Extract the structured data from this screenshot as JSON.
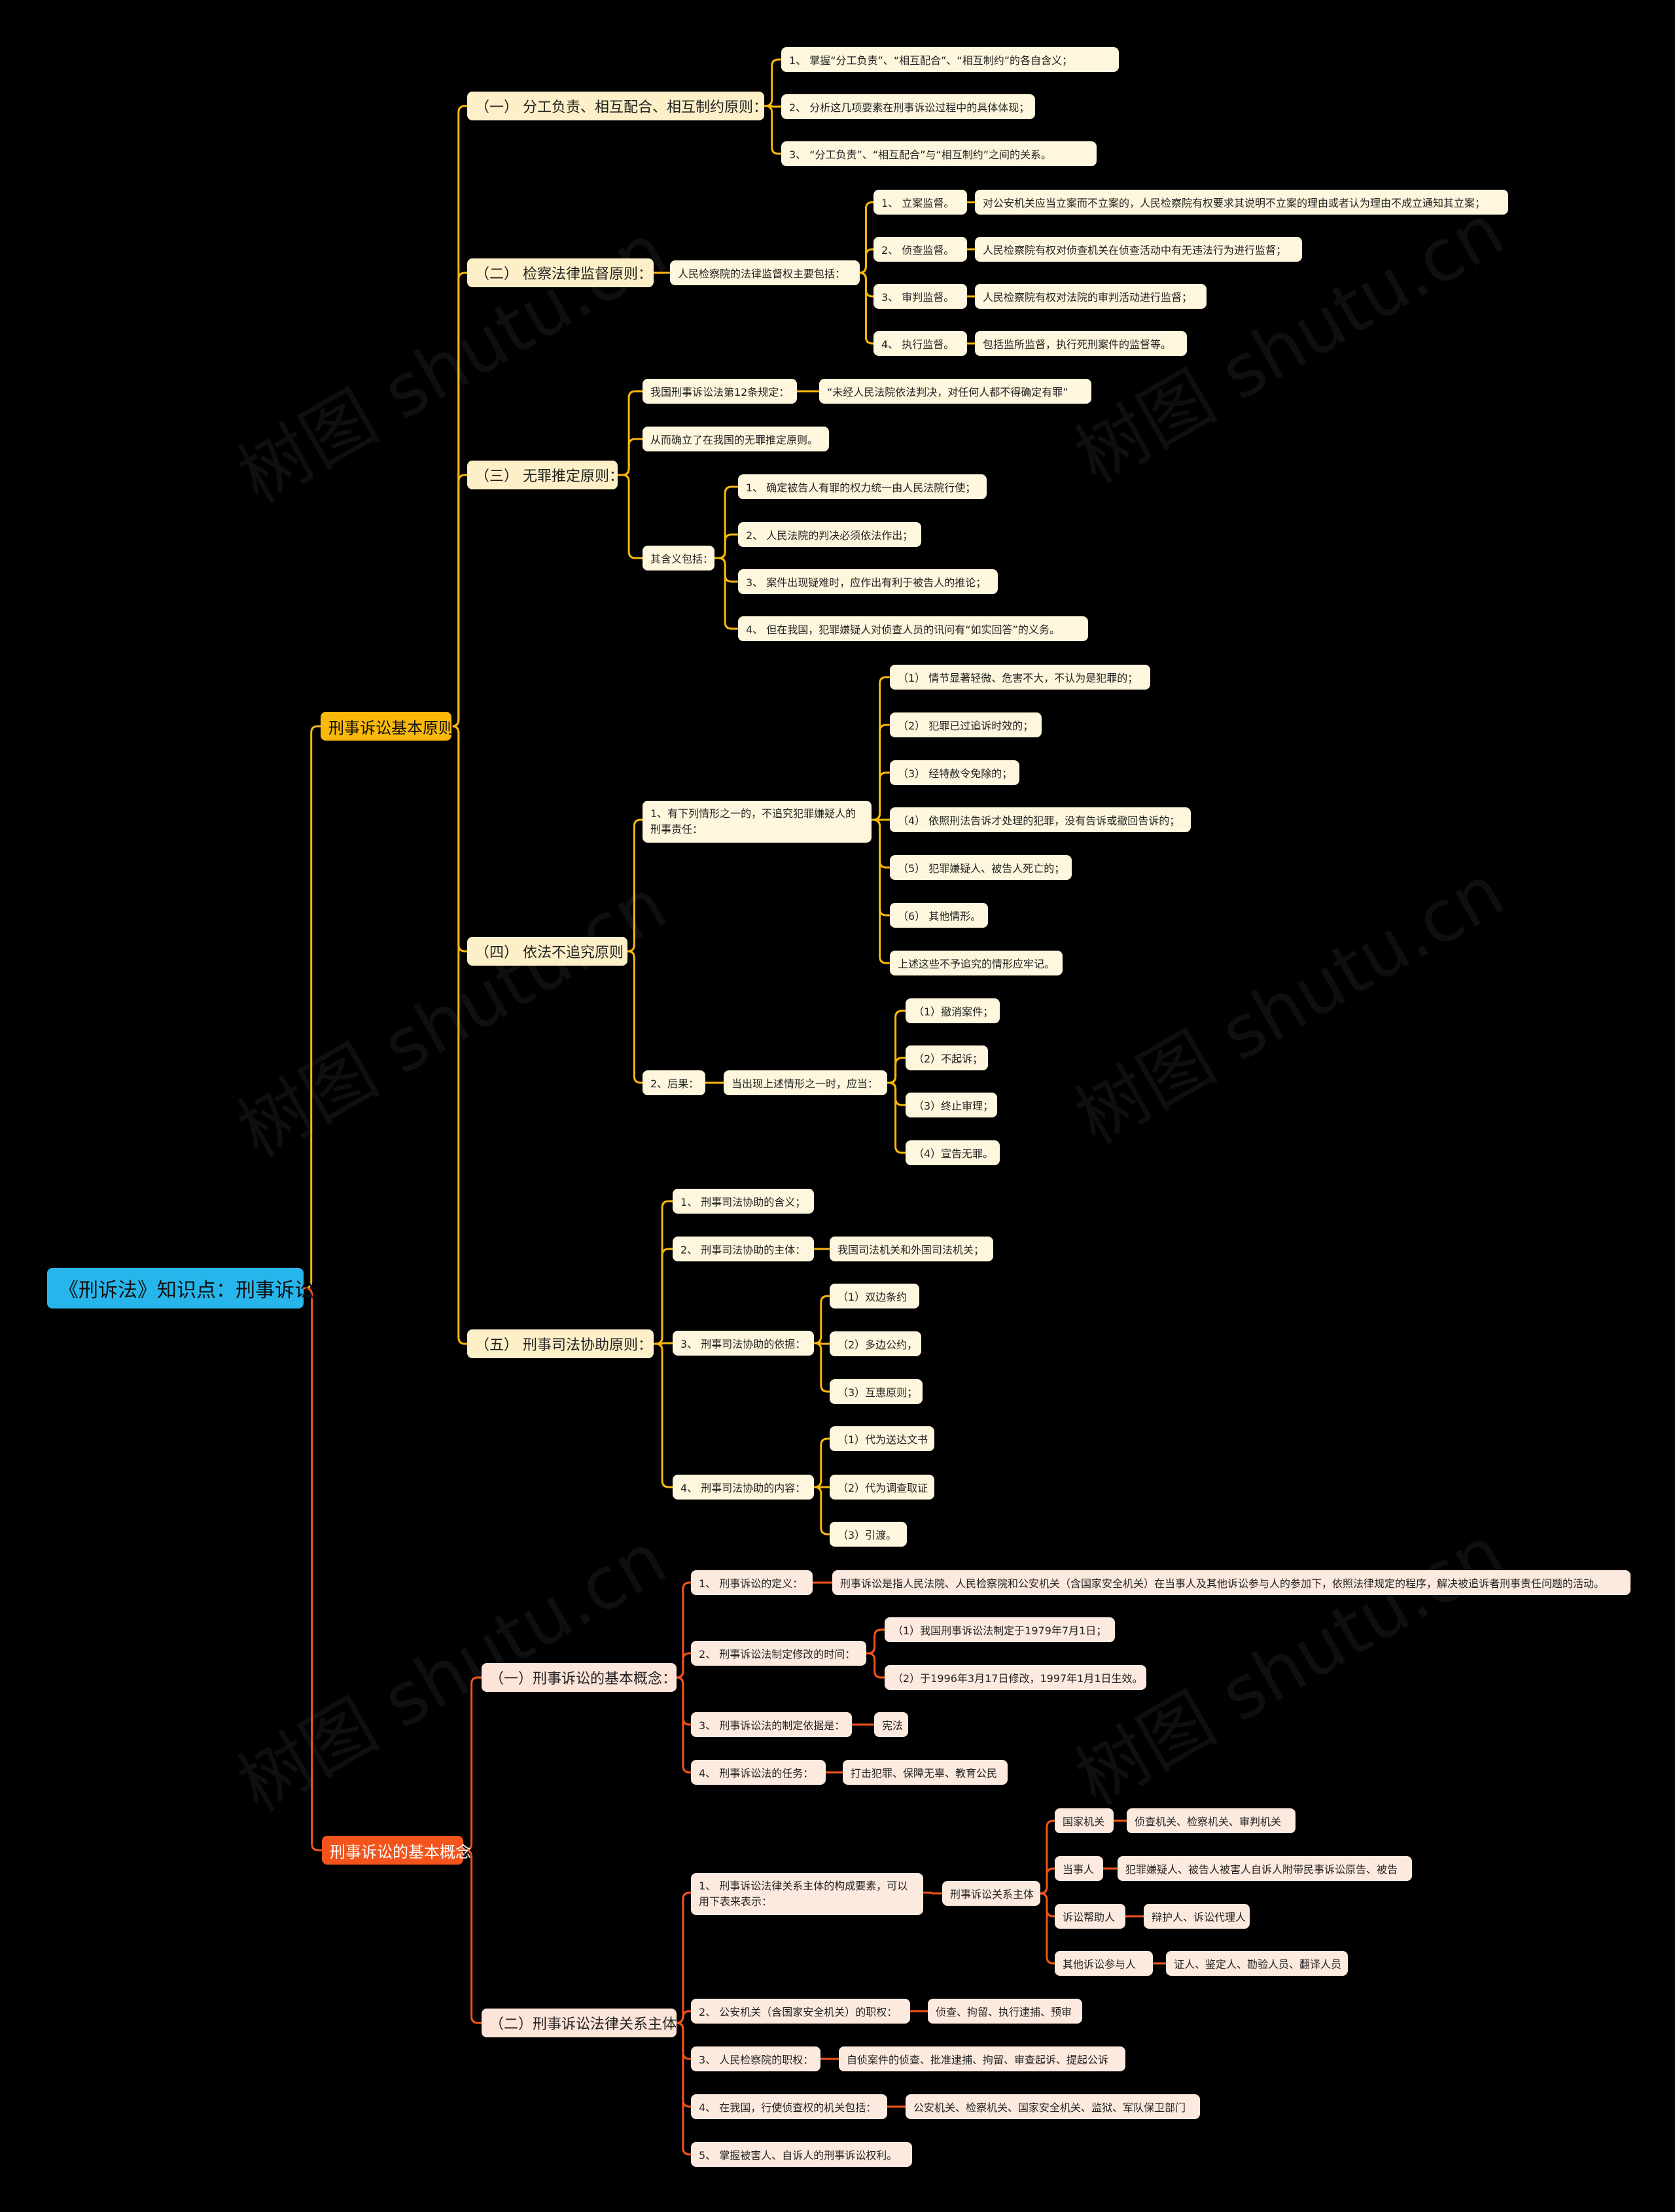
{
  "watermark": "树图 shutu.cn",
  "colors": {
    "main1": "#f9b80a",
    "main2": "#f4541b",
    "root": "#27b6ec"
  },
  "tree": {
    "id": "root",
    "text": "《刑诉法》知识点：刑事诉讼",
    "children": [
      {
        "id": "m1",
        "text": "刑事诉讼基本原则",
        "children": [
          {
            "id": "a1",
            "text": "（一）  分工负责、相互配合、相互制约原则：",
            "children": [
              {
                "id": "a1-1",
                "text": "1、 掌握“分工负责”、“相互配合”、“相互制约”的各自含义；"
              },
              {
                "id": "a1-2",
                "text": "2、 分析这几项要素在刑事诉讼过程中的具体体现；"
              },
              {
                "id": "a1-3",
                "text": "3、 “分工负责”、“相互配合”与“相互制约”之间的关系。"
              }
            ]
          },
          {
            "id": "a2",
            "text": "（二）  检察法律监督原则：",
            "children": [
              {
                "id": "a2-1",
                "text": "人民检察院的法律监督权主要包括：",
                "children": [
                  {
                    "id": "a2-1-1",
                    "text": "1、 立案监督。",
                    "children": [
                      {
                        "id": "a2-1-1-1",
                        "text": "对公安机关应当立案而不立案的，人民检察院有权要求其说明不立案的理由或者认为理由不成立通知其立案；"
                      }
                    ]
                  },
                  {
                    "id": "a2-1-2",
                    "text": "2、 侦查监督。",
                    "children": [
                      {
                        "id": "a2-1-2-1",
                        "text": "人民检察院有权对侦查机关在侦查活动中有无违法行为进行监督；"
                      }
                    ]
                  },
                  {
                    "id": "a2-1-3",
                    "text": "3、 审判监督。",
                    "children": [
                      {
                        "id": "a2-1-3-1",
                        "text": "人民检察院有权对法院的审判活动进行监督；"
                      }
                    ]
                  },
                  {
                    "id": "a2-1-4",
                    "text": "4、 执行监督。",
                    "children": [
                      {
                        "id": "a2-1-4-1",
                        "text": "包括监所监督，执行死刑案件的监督等。"
                      }
                    ]
                  }
                ]
              }
            ]
          },
          {
            "id": "a3",
            "text": "（三）  无罪推定原则：",
            "children": [
              {
                "id": "a3-1",
                "text": "我国刑事诉讼法第12条规定：",
                "children": [
                  {
                    "id": "a3-1-1",
                    "text": "“未经人民法院依法判决，对任何人都不得确定有罪”"
                  }
                ]
              },
              {
                "id": "a3-2",
                "text": "从而确立了在我国的无罪推定原则。"
              },
              {
                "id": "a3-3",
                "text": "其含义包括：",
                "children": [
                  {
                    "id": "a3-3-1",
                    "text": "1、 确定被告人有罪的权力统一由人民法院行使；"
                  },
                  {
                    "id": "a3-3-2",
                    "text": "2、 人民法院的判决必须依法作出；"
                  },
                  {
                    "id": "a3-3-3",
                    "text": "3、 案件出现疑难时，应作出有利于被告人的推论；"
                  },
                  {
                    "id": "a3-3-4",
                    "text": "4、 但在我国，犯罪嫌疑人对侦查人员的讯问有“如实回答”的义务。"
                  }
                ]
              }
            ]
          },
          {
            "id": "a4",
            "text": "（四）  依法不追究原则",
            "children": [
              {
                "id": "a4-1",
                "text": "1、有下列情形之一的，不追究犯罪嫌疑人的刑事责任：",
                "children": [
                  {
                    "id": "a4-1-1",
                    "text": "（1） 情节显著轻微、危害不大，不认为是犯罪的；"
                  },
                  {
                    "id": "a4-1-2",
                    "text": "（2） 犯罪已过追诉时效的；"
                  },
                  {
                    "id": "a4-1-3",
                    "text": "（3） 经特赦令免除的；"
                  },
                  {
                    "id": "a4-1-4",
                    "text": "（4） 依照刑法告诉才处理的犯罪，没有告诉或撤回告诉的；"
                  },
                  {
                    "id": "a4-1-5",
                    "text": "（5） 犯罪嫌疑人、被告人死亡的；"
                  },
                  {
                    "id": "a4-1-6",
                    "text": "（6） 其他情形。"
                  },
                  {
                    "id": "a4-1-7",
                    "text": "上述这些不予追究的情形应牢记。"
                  }
                ]
              },
              {
                "id": "a4-2",
                "text": "2、后果：",
                "children": [
                  {
                    "id": "a4-2-1",
                    "text": "当出现上述情形之一时，应当：",
                    "children": [
                      {
                        "id": "a4-2-1-1",
                        "text": "（1）撤消案件；"
                      },
                      {
                        "id": "a4-2-1-2",
                        "text": "（2）不起诉；"
                      },
                      {
                        "id": "a4-2-1-3",
                        "text": "（3）终止审理；"
                      },
                      {
                        "id": "a4-2-1-4",
                        "text": "（4）宣告无罪。"
                      }
                    ]
                  }
                ]
              }
            ]
          },
          {
            "id": "a5",
            "text": "（五）  刑事司法协助原则：",
            "children": [
              {
                "id": "a5-1",
                "text": "1、 刑事司法协助的含义；"
              },
              {
                "id": "a5-2",
                "text": "2、 刑事司法协助的主体：",
                "children": [
                  {
                    "id": "a5-2-1",
                    "text": "我国司法机关和外国司法机关；"
                  }
                ]
              },
              {
                "id": "a5-3",
                "text": "3、 刑事司法协助的依据：",
                "children": [
                  {
                    "id": "a5-3-1",
                    "text": "（1）双边条约"
                  },
                  {
                    "id": "a5-3-2",
                    "text": "（2）多边公约，"
                  },
                  {
                    "id": "a5-3-3",
                    "text": "（3）互惠原则；"
                  }
                ]
              },
              {
                "id": "a5-4",
                "text": "4、 刑事司法协助的内容：",
                "children": [
                  {
                    "id": "a5-4-1",
                    "text": "（1）代为送达文书"
                  },
                  {
                    "id": "a5-4-2",
                    "text": "（2）代为调查取证"
                  },
                  {
                    "id": "a5-4-3",
                    "text": "（3）引渡。"
                  }
                ]
              }
            ]
          }
        ]
      },
      {
        "id": "m2",
        "text": "刑事诉讼的基本概念",
        "children": [
          {
            "id": "b1",
            "text": "（一）刑事诉讼的基本概念：",
            "children": [
              {
                "id": "b1-1",
                "text": "1、 刑事诉讼的定义：",
                "children": [
                  {
                    "id": "b1-1-1",
                    "text": "刑事诉讼是指人民法院、人民检察院和公安机关（含国家安全机关）在当事人及其他诉讼参与人的参加下，依照法律规定的程序，解决被追诉者刑事责任问题的活动。"
                  }
                ]
              },
              {
                "id": "b1-2",
                "text": "2、 刑事诉讼法制定修改的时间：",
                "children": [
                  {
                    "id": "b1-2-1",
                    "text": "（1）我国刑事诉讼法制定于1979年7月1日；"
                  },
                  {
                    "id": "b1-2-2",
                    "text": "（2）于1996年3月17日修改，1997年1月1日生效。"
                  }
                ]
              },
              {
                "id": "b1-3",
                "text": "3、 刑事诉讼法的制定依据是：",
                "children": [
                  {
                    "id": "b1-3-1",
                    "text": "宪法"
                  }
                ]
              },
              {
                "id": "b1-4",
                "text": "4、 刑事诉讼法的任务：",
                "children": [
                  {
                    "id": "b1-4-1",
                    "text": "打击犯罪、保障无辜、教育公民"
                  }
                ]
              }
            ]
          },
          {
            "id": "b2",
            "text": "（二）刑事诉讼法律关系主体",
            "children": [
              {
                "id": "b2-1",
                "text": "1、 刑事诉讼法律关系主体的构成要素，可以用下表来表示：",
                "children": [
                  {
                    "id": "b2-1-1",
                    "text": "刑事诉讼关系主体",
                    "children": [
                      {
                        "id": "b2-1-1-1",
                        "text": "国家机关",
                        "children": [
                          {
                            "id": "b2-1-1-1-1",
                            "text": "侦查机关、检察机关、审判机关"
                          }
                        ]
                      },
                      {
                        "id": "b2-1-1-2",
                        "text": "当事人",
                        "children": [
                          {
                            "id": "b2-1-1-2-1",
                            "text": "犯罪嫌疑人、被告人被害人自诉人附带民事诉讼原告、被告"
                          }
                        ]
                      },
                      {
                        "id": "b2-1-1-3",
                        "text": "诉讼帮助人",
                        "children": [
                          {
                            "id": "b2-1-1-3-1",
                            "text": "辩护人、诉讼代理人"
                          }
                        ]
                      },
                      {
                        "id": "b2-1-1-4",
                        "text": "其他诉讼参与人",
                        "children": [
                          {
                            "id": "b2-1-1-4-1",
                            "text": "证人、鉴定人、勘验人员、翻译人员"
                          }
                        ]
                      }
                    ]
                  }
                ]
              },
              {
                "id": "b2-2",
                "text": "2、 公安机关（含国家安全机关）的职权：",
                "children": [
                  {
                    "id": "b2-2-1",
                    "text": "侦查、拘留、执行逮捕、预审"
                  }
                ]
              },
              {
                "id": "b2-3",
                "text": "3、 人民检察院的职权：",
                "children": [
                  {
                    "id": "b2-3-1",
                    "text": "自侦案件的侦查、批准逮捕、拘留、审查起诉、提起公诉"
                  }
                ]
              },
              {
                "id": "b2-4",
                "text": "4、 在我国，行使侦查权的机关包括：",
                "children": [
                  {
                    "id": "b2-4-1",
                    "text": "公安机关、检察机关、国家安全机关、监狱、军队保卫部门"
                  }
                ]
              },
              {
                "id": "b2-5",
                "text": "5、 掌握被害人、自诉人的刑事诉讼权利。"
              }
            ]
          }
        ]
      }
    ]
  }
}
